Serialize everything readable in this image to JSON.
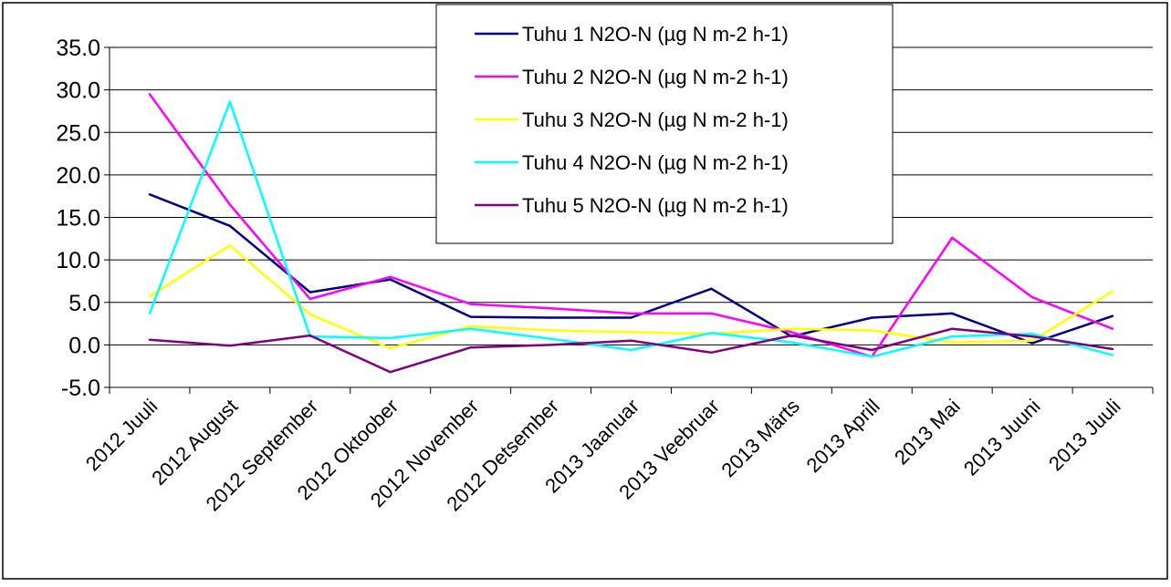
{
  "chart_data": {
    "type": "line",
    "categories": [
      "2012 Juuli",
      "2012 August",
      "2012 September",
      "2012 Oktoober",
      "2012 November",
      "2012 Detsember",
      "2013 Jaanuar",
      "2013 Veebruar",
      "2013 Märts",
      "2013 Aprill",
      "2013 Mai",
      "2013 Juuni",
      "2013 Juuli"
    ],
    "yticks": [
      "35.0",
      "30.0",
      "25.0",
      "20.0",
      "15.0",
      "10.0",
      "5.0",
      "0.0",
      "-5.0"
    ],
    "ylim": [
      -5,
      35
    ],
    "grid": true,
    "legend_position": "top-right",
    "series": [
      {
        "name": "Tuhu 1 N2O-N (µg N m-2 h-1)",
        "color": "#000080",
        "values": [
          17.7,
          14.0,
          6.2,
          7.7,
          3.3,
          3.2,
          3.2,
          6.6,
          1.0,
          3.2,
          3.7,
          0.2,
          3.4
        ]
      },
      {
        "name": "Tuhu 2 N2O-N (µg N m-2 h-1)",
        "color": "#ff00ff",
        "values": [
          29.5,
          16.5,
          5.4,
          8.0,
          4.8,
          4.3,
          3.7,
          3.7,
          1.5,
          -1.4,
          12.6,
          5.6,
          1.9
        ]
      },
      {
        "name": "Tuhu 3 N2O-N (µg N m-2 h-1)",
        "color": "#ffff00",
        "values": [
          5.7,
          11.7,
          3.6,
          -0.4,
          2.2,
          1.7,
          1.5,
          1.3,
          1.9,
          1.7,
          0.3,
          0.5,
          6.3
        ]
      },
      {
        "name": "Tuhu 4 N2O-N (µg N m-2 h-1)",
        "color": "#00ffff",
        "values": [
          3.7,
          28.6,
          1.0,
          0.8,
          1.9,
          0.7,
          -0.6,
          1.4,
          0.3,
          -1.4,
          1.0,
          1.3,
          -1.2
        ]
      },
      {
        "name": "Tuhu 5 N2O-N (µg N m-2 h-1)",
        "color": "#800080",
        "values": [
          0.6,
          -0.1,
          1.1,
          -3.2,
          -0.3,
          0.0,
          0.5,
          -0.9,
          1.1,
          -0.6,
          1.9,
          1.0,
          -0.5
        ]
      }
    ]
  }
}
